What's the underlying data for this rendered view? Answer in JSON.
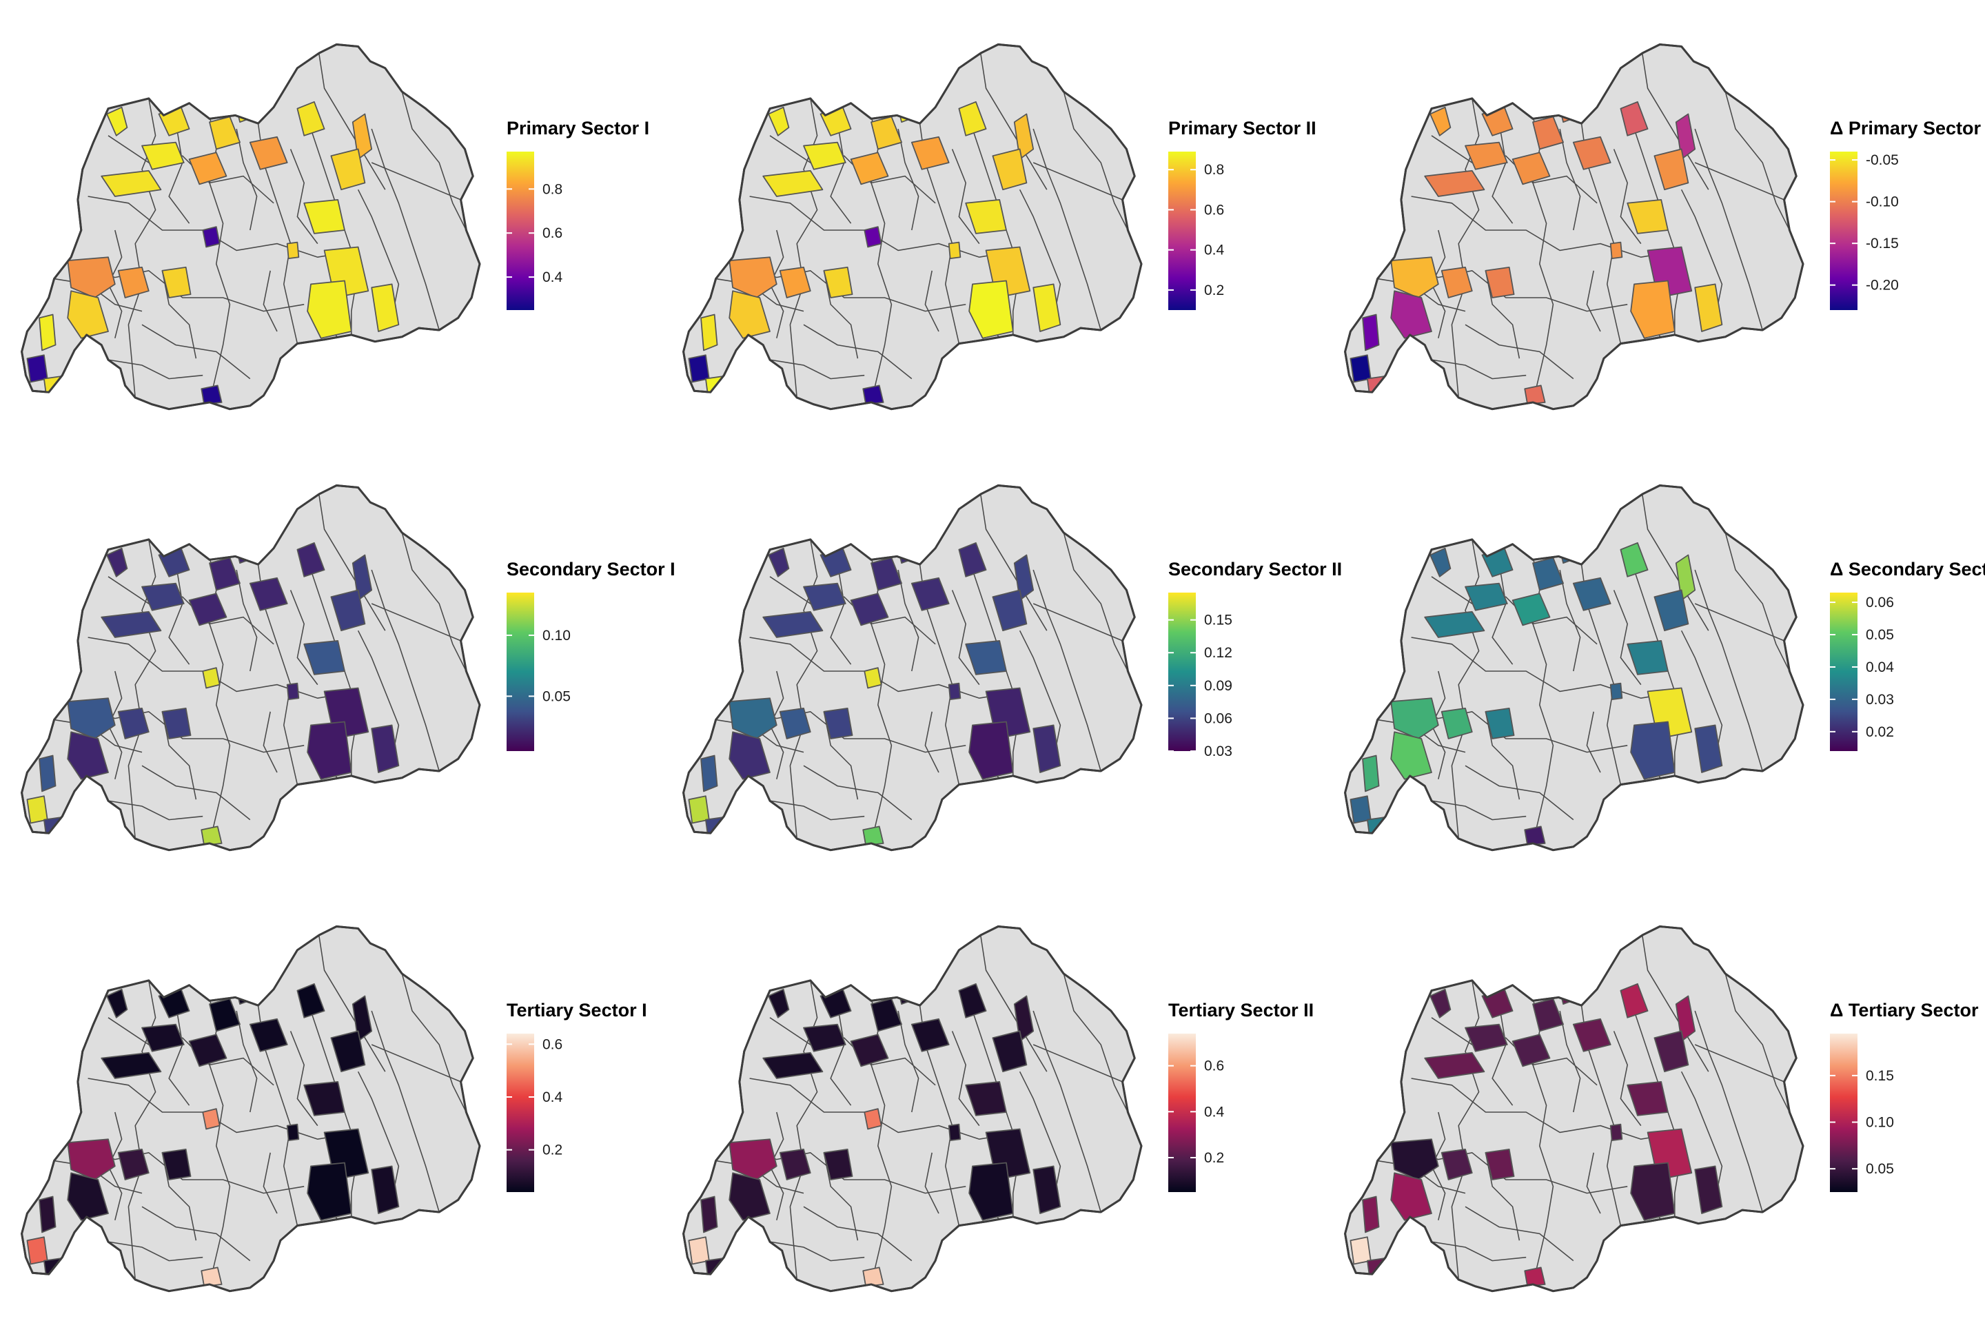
{
  "panels": [
    {
      "id": "primary-1",
      "legend_title": "Primary Sector I",
      "palette": "plasma",
      "ticks": [
        "0.4",
        "0.6",
        "0.8"
      ],
      "tick_values": [
        0.4,
        0.6,
        0.8
      ],
      "range": [
        0.25,
        0.97
      ]
    },
    {
      "id": "primary-2",
      "legend_title": "Primary Sector II",
      "palette": "plasma",
      "ticks": [
        "0.2",
        "0.4",
        "0.6",
        "0.8"
      ],
      "tick_values": [
        0.2,
        0.4,
        0.6,
        0.8
      ],
      "range": [
        0.1,
        0.89
      ]
    },
    {
      "id": "primary-delta",
      "legend_title": "Δ Primary Sector",
      "palette": "plasma",
      "ticks": [
        "-0.20",
        "-0.15",
        "-0.10",
        "-0.05"
      ],
      "tick_values": [
        -0.2,
        -0.15,
        -0.1,
        -0.05
      ],
      "range": [
        -0.23,
        -0.04
      ]
    },
    {
      "id": "secondary-1",
      "legend_title": "Secondary Sector I",
      "palette": "viridis",
      "ticks": [
        "0.05",
        "0.10"
      ],
      "tick_values": [
        0.05,
        0.1
      ],
      "range": [
        0.005,
        0.135
      ]
    },
    {
      "id": "secondary-2",
      "legend_title": "Secondary Sector II",
      "palette": "viridis",
      "ticks": [
        "0.03",
        "0.06",
        "0.09",
        "0.12",
        "0.15"
      ],
      "tick_values": [
        0.03,
        0.06,
        0.09,
        0.12,
        0.15
      ],
      "range": [
        0.03,
        0.175
      ]
    },
    {
      "id": "secondary-delta",
      "legend_title": "Δ Secondary Sector",
      "palette": "viridis",
      "ticks": [
        "0.02",
        "0.03",
        "0.04",
        "0.05",
        "0.06"
      ],
      "tick_values": [
        0.02,
        0.03,
        0.04,
        0.05,
        0.06
      ],
      "range": [
        0.014,
        0.063
      ]
    },
    {
      "id": "tertiary-1",
      "legend_title": "Tertiary Sector I",
      "palette": "rocket",
      "ticks": [
        "0.2",
        "0.4",
        "0.6"
      ],
      "tick_values": [
        0.2,
        0.4,
        0.6
      ],
      "range": [
        0.04,
        0.64
      ]
    },
    {
      "id": "tertiary-2",
      "legend_title": "Tertiary Sector II",
      "palette": "rocket",
      "ticks": [
        "0.2",
        "0.4",
        "0.6"
      ],
      "tick_values": [
        0.2,
        0.4,
        0.6
      ],
      "range": [
        0.05,
        0.74
      ]
    },
    {
      "id": "tertiary-delta",
      "legend_title": "Δ Tertiary Sector",
      "palette": "rocket",
      "ticks": [
        "0.05",
        "0.10",
        "0.15"
      ],
      "tick_values": [
        0.05,
        0.1,
        0.15
      ],
      "range": [
        0.025,
        0.195
      ]
    }
  ],
  "colors": {
    "base_fill": "#dedede",
    "outline": "#3d3d3d",
    "district_line": "#4a4a4a"
  }
}
